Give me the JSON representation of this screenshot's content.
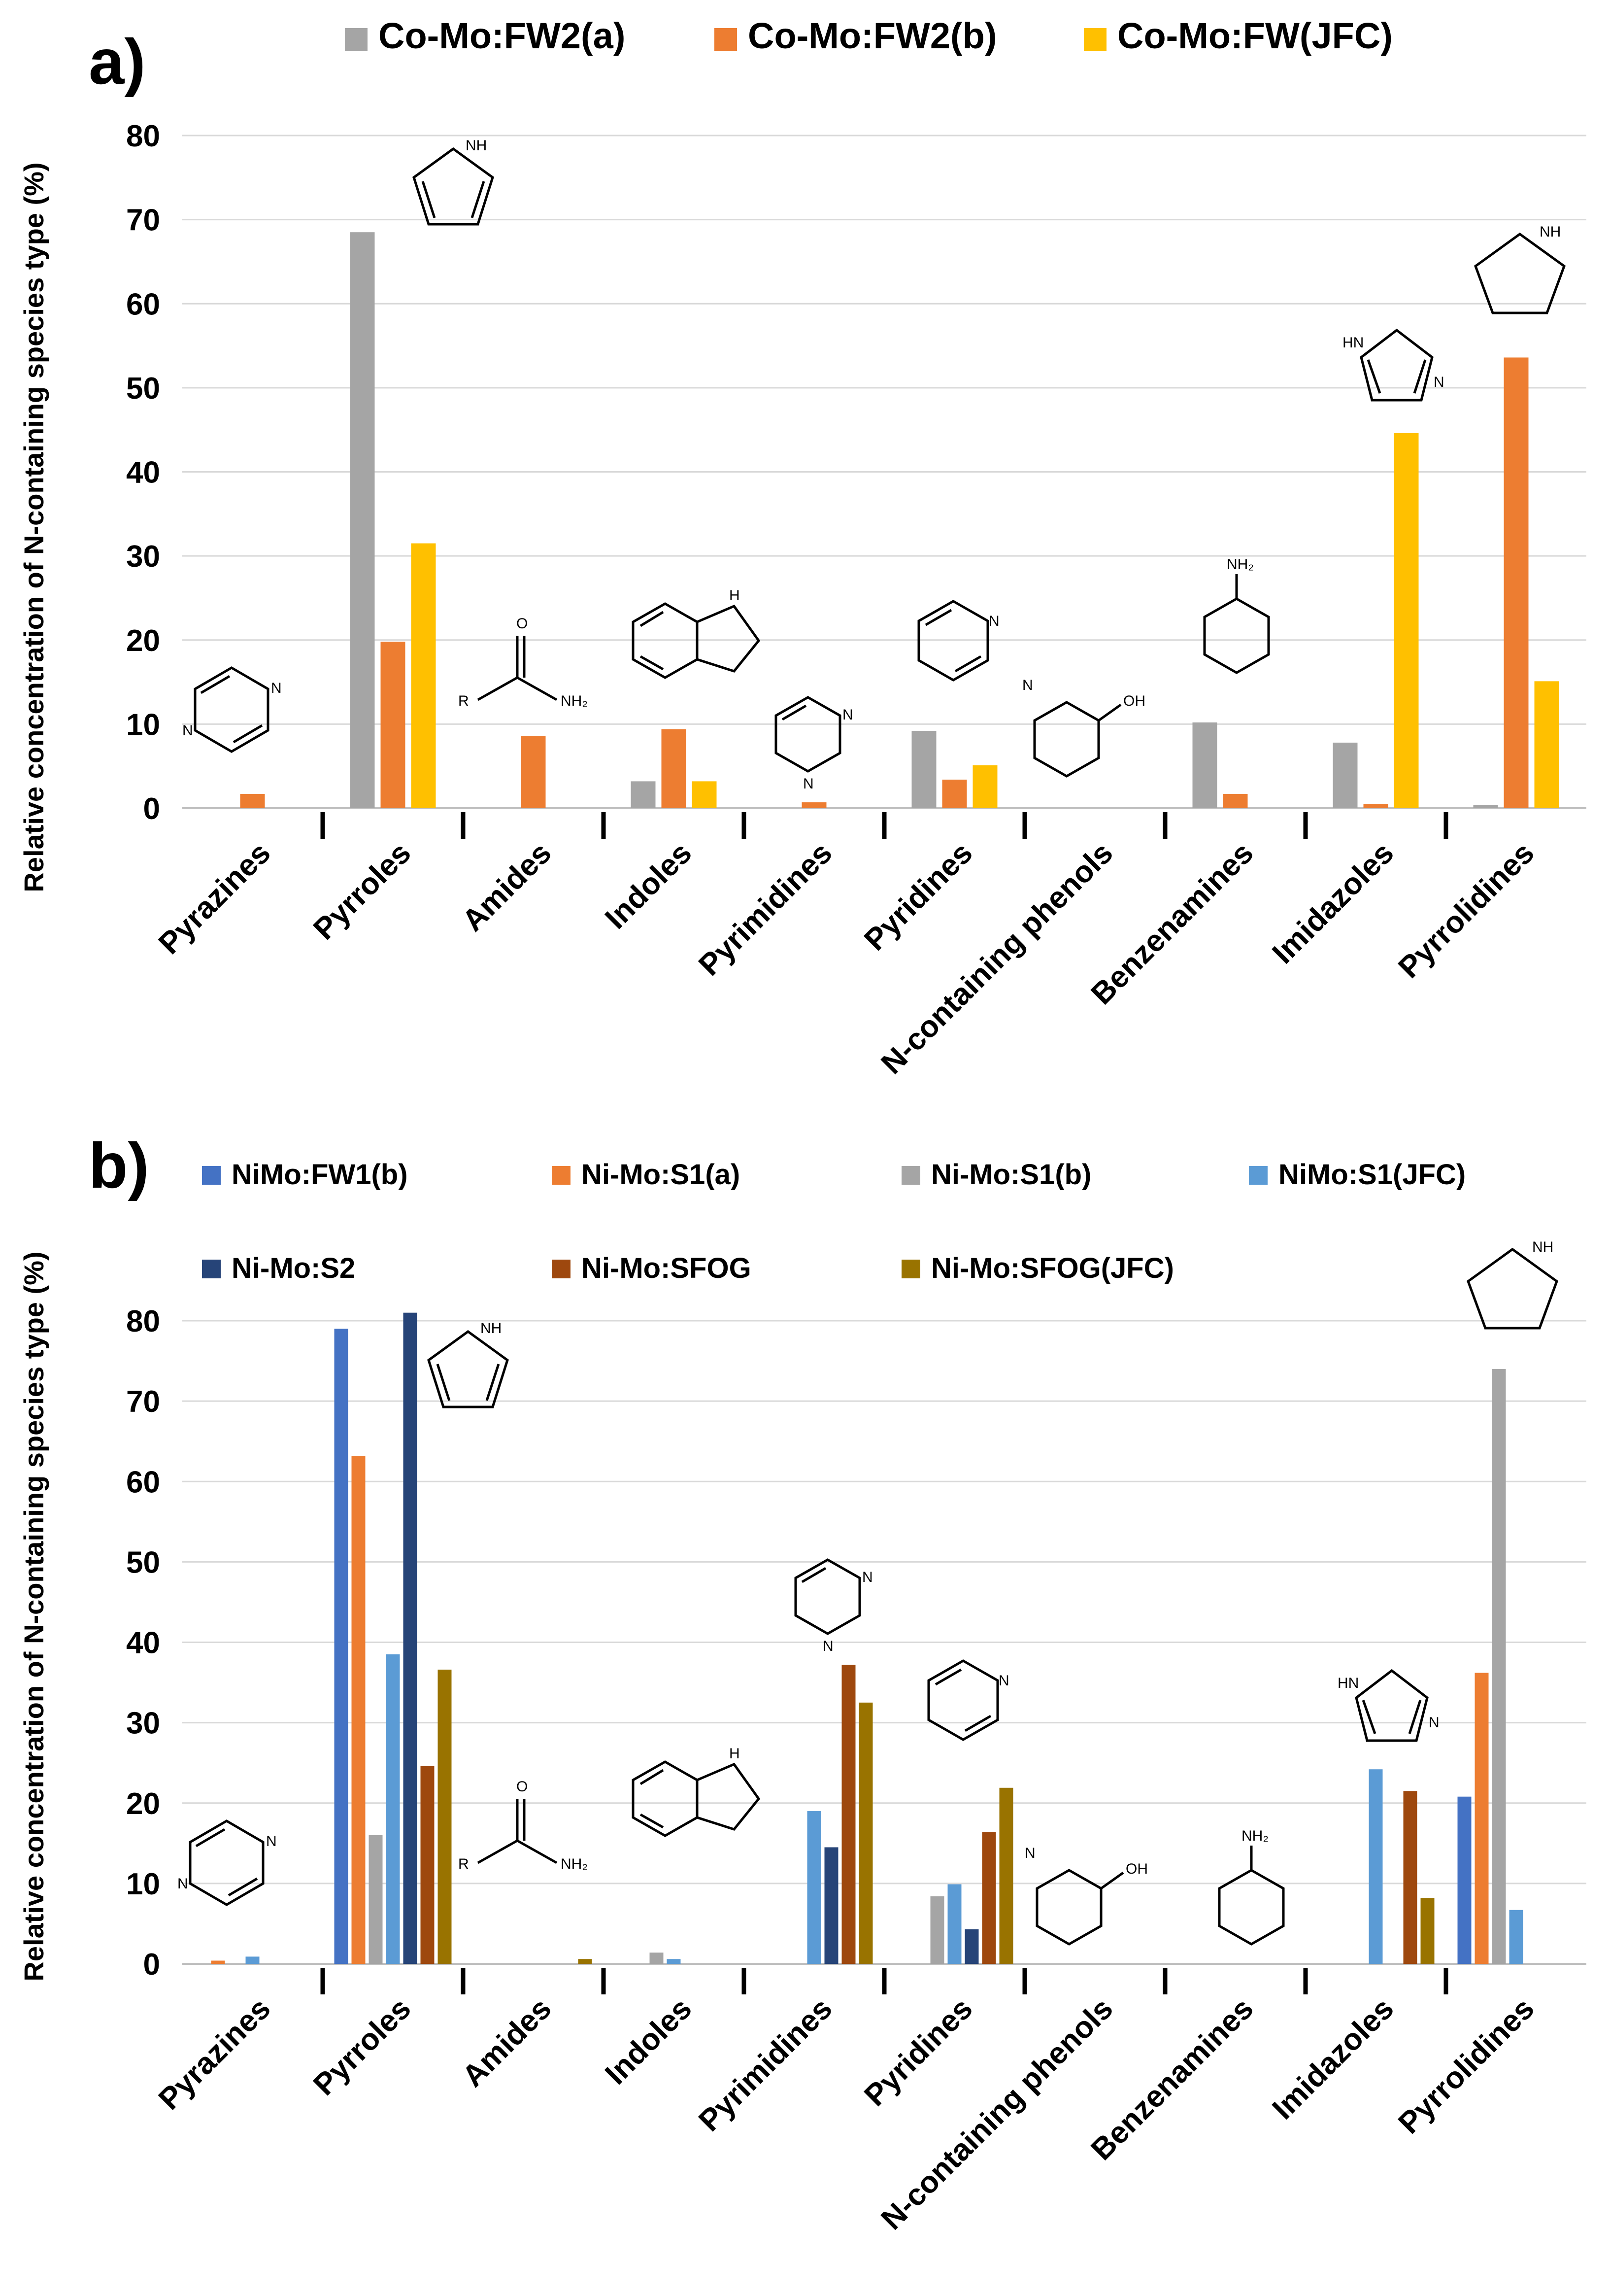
{
  "chart_data": [
    {
      "type": "bar",
      "panel": "a)",
      "ylabel": "Relative concentration of N-containing species type (%)",
      "ylim": [
        0,
        80
      ],
      "yticks": [
        0,
        10,
        20,
        30,
        40,
        50,
        60,
        70,
        80
      ],
      "categories": [
        "Pyrazines",
        "Pyrroles",
        "Amides",
        "Indoles",
        "Pyrimidines",
        "Pyridines",
        "N-containing phenols",
        "Benzenamines",
        "Imidazoles",
        "Pyrrolidines"
      ],
      "legend_position": "top",
      "series": [
        {
          "name": "Co-Mo:FW2(a)",
          "color": "#a5a5a5",
          "values": [
            0,
            68.5,
            0,
            3.2,
            0,
            9.2,
            0,
            10.2,
            7.8,
            0.4
          ]
        },
        {
          "name": "Co-Mo:FW2(b)",
          "color": "#ed7d31",
          "values": [
            1.7,
            19.8,
            8.6,
            9.4,
            0.7,
            3.4,
            0,
            1.7,
            0.5,
            53.6
          ]
        },
        {
          "name": "Co-Mo:FW(JFC)",
          "color": "#ffc000",
          "values": [
            0,
            31.5,
            0,
            3.2,
            0,
            5.1,
            0,
            0,
            44.6,
            15.1
          ]
        }
      ]
    },
    {
      "type": "bar",
      "panel": "b)",
      "ylabel": "Relative concentration of N-containing species type (%)",
      "ylim": [
        0,
        80
      ],
      "yticks": [
        0,
        10,
        20,
        30,
        40,
        50,
        60,
        70,
        80
      ],
      "categories": [
        "Pyrazines",
        "Pyrroles",
        "Amides",
        "Indoles",
        "Pyrimidines",
        "Pyridines",
        "N-containing phenols",
        "Benzenamines",
        "Imidazoles",
        "Pyrrolidines"
      ],
      "legend_position": "top",
      "series": [
        {
          "name": "NiMo:FW1(b)",
          "color": "#4472c4",
          "values": [
            0,
            79.0,
            0,
            0,
            0,
            0,
            0,
            0,
            0,
            20.8
          ]
        },
        {
          "name": "Ni-Mo:S1(a)",
          "color": "#ed7d31",
          "values": [
            0.4,
            63.2,
            0,
            0,
            0,
            0,
            0,
            0,
            0,
            36.2
          ]
        },
        {
          "name": "Ni-Mo:S1(b)",
          "color": "#a5a5a5",
          "values": [
            0,
            16.0,
            0,
            1.4,
            0,
            8.4,
            0,
            0,
            0,
            74.0
          ]
        },
        {
          "name": "NiMo:S1(JFC)",
          "color": "#5b9bd5",
          "values": [
            0.9,
            38.5,
            0,
            0.6,
            19.0,
            9.9,
            0,
            0,
            24.2,
            6.7
          ]
        },
        {
          "name": "Ni-Mo:S2",
          "color": "#264478",
          "values": [
            0,
            81.0,
            0,
            0,
            14.5,
            4.3,
            0,
            0,
            0,
            0
          ]
        },
        {
          "name": "Ni-Mo:SFOG",
          "color": "#9e480e",
          "values": [
            0,
            24.6,
            0,
            0,
            37.2,
            16.4,
            0,
            0,
            21.5,
            0
          ]
        },
        {
          "name": "Ni-Mo:SFOG(JFC)",
          "color": "#997300",
          "values": [
            0,
            36.6,
            0.6,
            0,
            32.5,
            21.9,
            0,
            0,
            8.2,
            0
          ]
        }
      ]
    }
  ],
  "molecule_labels": {
    "nh": "NH",
    "nh2": "NH₂",
    "hn": "HN",
    "n": "N",
    "o": "O",
    "oh": "OH",
    "r": "R"
  }
}
